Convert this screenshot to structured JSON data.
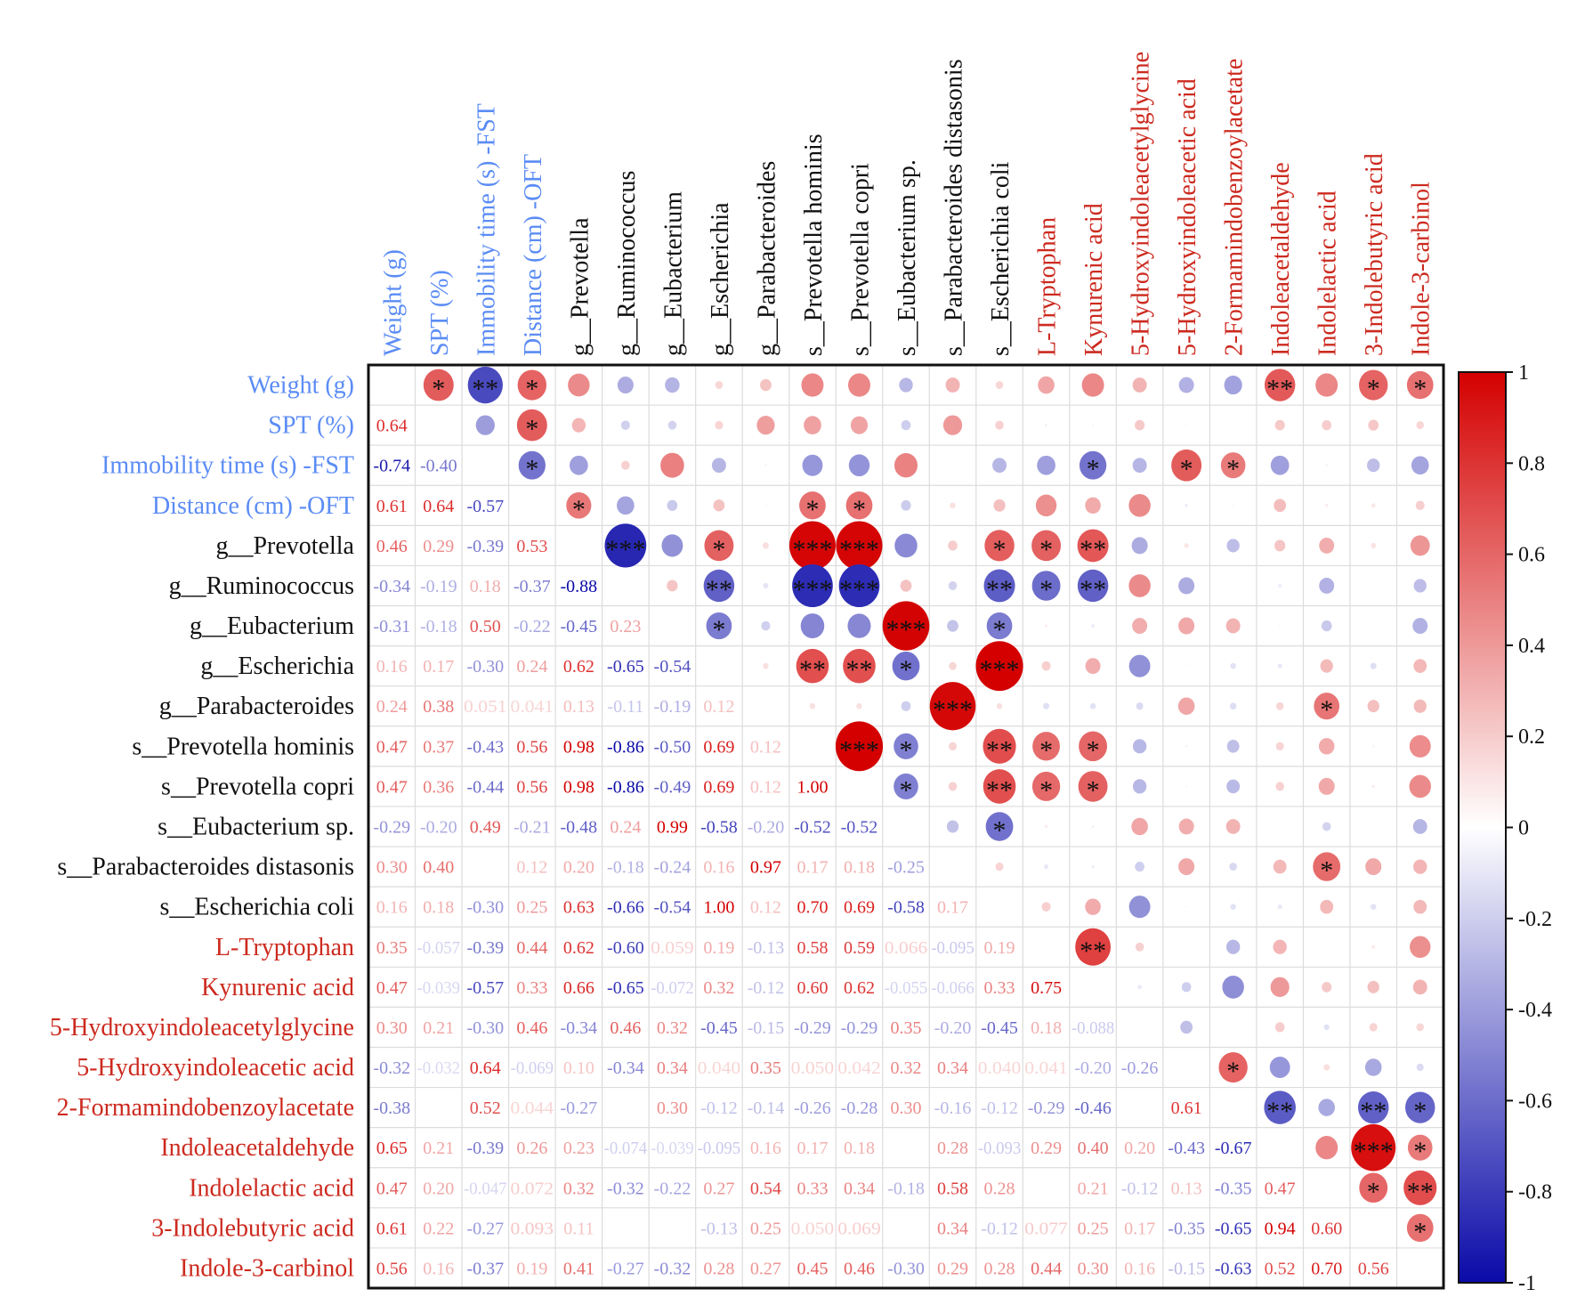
{
  "chart_data": {
    "type": "heatmap",
    "subtype": "correlation-matrix",
    "lower_triangle": "numeric coefficients",
    "upper_triangle": "circles sized and coloured by coefficient with significance stars",
    "variables": [
      "Weight (g)",
      "SPT (%)",
      "Immobility time (s) -FST",
      "Distance (cm) -OFT",
      "g__Prevotella",
      "g__Ruminococcus",
      "g__Eubacterium",
      "g__Escherichia",
      "g__Parabacteroides",
      "s__Prevotella hominis",
      "s__Prevotella copri",
      "s__Eubacterium sp.",
      "s__Parabacteroides distasonis",
      "s__Escherichia coli",
      "L-Tryptophan",
      "Kynurenic acid",
      "5-Hydroxyindoleacetylglycine",
      "5-Hydroxyindoleacetic acid",
      "2-Formamindobenzoylacetate",
      "Indoleacetaldehyde",
      "Indolelactic acid",
      "3-Indolebutyric acid",
      "Indole-3-carbinol"
    ],
    "variable_groups": [
      "behavior",
      "behavior",
      "behavior",
      "behavior",
      "microbe",
      "microbe",
      "microbe",
      "microbe",
      "microbe",
      "microbe",
      "microbe",
      "microbe",
      "microbe",
      "microbe",
      "metabolite",
      "metabolite",
      "metabolite",
      "metabolite",
      "metabolite",
      "metabolite",
      "metabolite",
      "metabolite",
      "metabolite"
    ],
    "group_colors": {
      "behavior": "#5b8cf5",
      "microbe": "#111111",
      "metabolite": "#cc2a1f"
    },
    "lower": [
      [],
      [
        0.64
      ],
      [
        -0.74,
        -0.4
      ],
      [
        0.61,
        0.64,
        -0.57
      ],
      [
        0.46,
        0.29,
        -0.39,
        0.53
      ],
      [
        -0.34,
        -0.19,
        0.18,
        -0.37,
        -0.88
      ],
      [
        -0.31,
        -0.18,
        0.5,
        -0.22,
        -0.45,
        0.23
      ],
      [
        0.16,
        0.17,
        -0.3,
        0.24,
        0.62,
        -0.65,
        -0.54
      ],
      [
        0.24,
        0.38,
        0.051,
        0.041,
        0.13,
        -0.11,
        -0.19,
        0.12
      ],
      [
        0.47,
        0.37,
        -0.43,
        0.56,
        0.98,
        -0.86,
        -0.5,
        0.69,
        0.12
      ],
      [
        0.47,
        0.36,
        -0.44,
        0.56,
        0.98,
        -0.86,
        -0.49,
        0.69,
        0.12,
        1.0
      ],
      [
        -0.29,
        -0.2,
        0.49,
        -0.21,
        -0.48,
        0.24,
        0.99,
        -0.58,
        -0.2,
        -0.52,
        -0.52
      ],
      [
        0.3,
        0.4,
        null,
        0.12,
        0.2,
        -0.18,
        -0.24,
        0.16,
        0.97,
        0.17,
        0.18,
        -0.25
      ],
      [
        0.16,
        0.18,
        -0.3,
        0.25,
        0.63,
        -0.66,
        -0.54,
        1.0,
        0.12,
        0.7,
        0.69,
        -0.58,
        0.17
      ],
      [
        0.35,
        -0.057,
        -0.39,
        0.44,
        0.62,
        -0.6,
        0.059,
        0.19,
        -0.13,
        0.58,
        0.59,
        0.066,
        -0.095,
        0.19
      ],
      [
        0.47,
        -0.039,
        -0.57,
        0.33,
        0.66,
        -0.65,
        -0.072,
        0.32,
        -0.12,
        0.6,
        0.62,
        -0.055,
        -0.066,
        0.33,
        0.75
      ],
      [
        0.3,
        0.21,
        -0.3,
        0.46,
        -0.34,
        0.46,
        0.32,
        -0.45,
        -0.15,
        -0.29,
        -0.29,
        0.35,
        -0.2,
        -0.45,
        0.18,
        -0.088
      ],
      [
        -0.32,
        -0.032,
        0.64,
        -0.069,
        0.1,
        -0.34,
        0.34,
        0.04,
        0.35,
        0.05,
        0.042,
        0.32,
        0.34,
        0.04,
        0.041,
        -0.2,
        -0.26
      ],
      [
        -0.38,
        null,
        0.52,
        0.044,
        -0.27,
        null,
        0.3,
        -0.12,
        -0.14,
        -0.26,
        -0.28,
        0.3,
        -0.16,
        -0.12,
        -0.29,
        -0.46,
        null,
        0.61
      ],
      [
        0.65,
        0.21,
        -0.39,
        0.26,
        0.23,
        -0.074,
        -0.039,
        -0.095,
        0.16,
        0.17,
        0.18,
        null,
        0.28,
        -0.093,
        0.29,
        0.4,
        0.2,
        -0.43,
        -0.67
      ],
      [
        0.47,
        0.2,
        -0.047,
        0.072,
        0.32,
        -0.32,
        -0.22,
        0.27,
        0.54,
        0.33,
        0.34,
        -0.18,
        0.58,
        0.28,
        null,
        0.21,
        -0.12,
        0.13,
        -0.35,
        0.47
      ],
      [
        0.61,
        0.22,
        -0.27,
        0.093,
        0.11,
        null,
        null,
        -0.13,
        0.25,
        0.05,
        0.069,
        null,
        0.34,
        -0.12,
        0.077,
        0.25,
        0.17,
        -0.35,
        -0.65,
        0.94,
        0.6
      ],
      [
        0.56,
        0.16,
        -0.37,
        0.19,
        0.41,
        -0.27,
        -0.32,
        0.28,
        0.27,
        0.45,
        0.46,
        -0.3,
        0.29,
        0.28,
        0.44,
        0.3,
        0.16,
        -0.15,
        -0.63,
        0.52,
        0.7,
        0.56
      ]
    ],
    "significance": [
      {
        "row": 0,
        "col": 1,
        "stars": "*"
      },
      {
        "row": 0,
        "col": 2,
        "stars": "**"
      },
      {
        "row": 0,
        "col": 3,
        "stars": "*"
      },
      {
        "row": 0,
        "col": 19,
        "stars": "**"
      },
      {
        "row": 0,
        "col": 21,
        "stars": "*"
      },
      {
        "row": 0,
        "col": 22,
        "stars": "*"
      },
      {
        "row": 1,
        "col": 3,
        "stars": "*"
      },
      {
        "row": 2,
        "col": 3,
        "stars": "*"
      },
      {
        "row": 2,
        "col": 15,
        "stars": "*"
      },
      {
        "row": 2,
        "col": 17,
        "stars": "*"
      },
      {
        "row": 2,
        "col": 18,
        "stars": "*"
      },
      {
        "row": 3,
        "col": 4,
        "stars": "*"
      },
      {
        "row": 3,
        "col": 9,
        "stars": "*"
      },
      {
        "row": 3,
        "col": 10,
        "stars": "*"
      },
      {
        "row": 4,
        "col": 5,
        "stars": "***"
      },
      {
        "row": 4,
        "col": 7,
        "stars": "*"
      },
      {
        "row": 4,
        "col": 9,
        "stars": "***"
      },
      {
        "row": 4,
        "col": 10,
        "stars": "***"
      },
      {
        "row": 4,
        "col": 13,
        "stars": "*"
      },
      {
        "row": 4,
        "col": 14,
        "stars": "*"
      },
      {
        "row": 4,
        "col": 15,
        "stars": "**"
      },
      {
        "row": 5,
        "col": 7,
        "stars": "**"
      },
      {
        "row": 5,
        "col": 9,
        "stars": "***"
      },
      {
        "row": 5,
        "col": 10,
        "stars": "***"
      },
      {
        "row": 5,
        "col": 13,
        "stars": "**"
      },
      {
        "row": 5,
        "col": 14,
        "stars": "*"
      },
      {
        "row": 5,
        "col": 15,
        "stars": "**"
      },
      {
        "row": 6,
        "col": 7,
        "stars": "*"
      },
      {
        "row": 6,
        "col": 11,
        "stars": "***"
      },
      {
        "row": 6,
        "col": 13,
        "stars": "*"
      },
      {
        "row": 7,
        "col": 9,
        "stars": "**"
      },
      {
        "row": 7,
        "col": 10,
        "stars": "**"
      },
      {
        "row": 7,
        "col": 11,
        "stars": "*"
      },
      {
        "row": 7,
        "col": 13,
        "stars": "***"
      },
      {
        "row": 8,
        "col": 12,
        "stars": "***"
      },
      {
        "row": 8,
        "col": 20,
        "stars": "*"
      },
      {
        "row": 9,
        "col": 10,
        "stars": "***"
      },
      {
        "row": 9,
        "col": 11,
        "stars": "*"
      },
      {
        "row": 9,
        "col": 13,
        "stars": "**"
      },
      {
        "row": 9,
        "col": 14,
        "stars": "*"
      },
      {
        "row": 9,
        "col": 15,
        "stars": "*"
      },
      {
        "row": 10,
        "col": 11,
        "stars": "*"
      },
      {
        "row": 10,
        "col": 13,
        "stars": "**"
      },
      {
        "row": 10,
        "col": 14,
        "stars": "*"
      },
      {
        "row": 10,
        "col": 15,
        "stars": "*"
      },
      {
        "row": 11,
        "col": 13,
        "stars": "*"
      },
      {
        "row": 12,
        "col": 20,
        "stars": "*"
      },
      {
        "row": 14,
        "col": 15,
        "stars": "**"
      },
      {
        "row": 17,
        "col": 18,
        "stars": "*"
      },
      {
        "row": 18,
        "col": 19,
        "stars": "**"
      },
      {
        "row": 18,
        "col": 21,
        "stars": "**"
      },
      {
        "row": 18,
        "col": 22,
        "stars": "*"
      },
      {
        "row": 19,
        "col": 21,
        "stars": "***"
      },
      {
        "row": 19,
        "col": 22,
        "stars": "*"
      },
      {
        "row": 20,
        "col": 21,
        "stars": "*"
      },
      {
        "row": 20,
        "col": 22,
        "stars": "**"
      },
      {
        "row": 21,
        "col": 22,
        "stars": "*"
      }
    ],
    "color_scale": {
      "min": -1,
      "max": 1,
      "low_color": "#0a0aa8",
      "mid_color": "#ffffff",
      "high_color": "#d40000"
    },
    "colorbar_ticks": [
      {
        "value": 1,
        "label": "1"
      },
      {
        "value": 0.8,
        "label": "0.8"
      },
      {
        "value": 0.6,
        "label": "0.6"
      },
      {
        "value": 0.4,
        "label": "0.4"
      },
      {
        "value": 0.2,
        "label": "0.2"
      },
      {
        "value": 0,
        "label": "0"
      },
      {
        "value": -0.2,
        "label": "-0.2"
      },
      {
        "value": -0.4,
        "label": "-0.4"
      },
      {
        "value": -0.6,
        "label": "-0.6"
      },
      {
        "value": -0.8,
        "label": "-0.8"
      },
      {
        "value": -1,
        "label": "-1"
      }
    ],
    "legend_placement": "right"
  }
}
